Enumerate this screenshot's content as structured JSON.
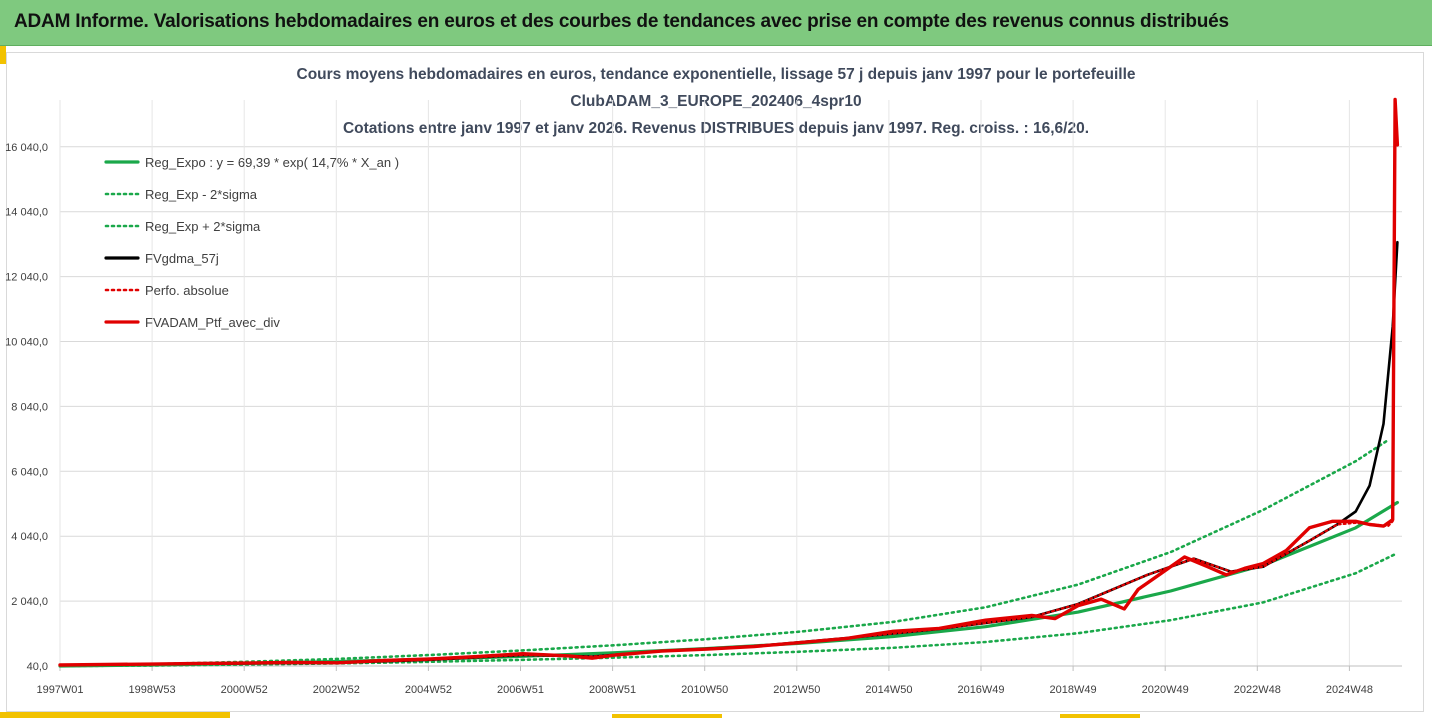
{
  "header": {
    "title": "ADAM Informe. Valorisations hebdomadaires en euros et des courbes de tendances avec prise en compte des revenus connus distribués"
  },
  "colors": {
    "header_bg": "#7fc97f",
    "accent": "#f2c200",
    "reg_green": "#1aa84a",
    "fvgdma_black": "#000000",
    "perf_red": "#e00000"
  },
  "chart_data": {
    "type": "line",
    "title_lines": [
      "Cours moyens hebdomadaires  en euros, tendance exponentielle, lissage 57 j depuis janv 1997 pour le portefeuille",
      "ClubADAM_3_EUROPE_202406_4spr10",
      "Cotations entre janv 1997 et janv 2026. Revenus DISTRIBUES depuis janv 1997. Reg. croiss. : 16,6/20."
    ],
    "x_tick_labels": [
      "1997W01",
      "1998W53",
      "2000W52",
      "2002W52",
      "2004W52",
      "2006W51",
      "2008W51",
      "2010W50",
      "2012W50",
      "2014W50",
      "2016W49",
      "2018W49",
      "2020W49",
      "2022W48",
      "2024W48"
    ],
    "x_range_years": [
      1997.0,
      2026.0
    ],
    "y_tick_labels": [
      "40,0",
      "2 040,0",
      "4 040,0",
      "6 040,0",
      "8 040,0",
      "10 040,0",
      "12 040,0",
      "14 040,0",
      "16 040,0"
    ],
    "y_ticks": [
      40,
      2040,
      4040,
      6040,
      8040,
      10040,
      12040,
      14040,
      16040
    ],
    "ylim": [
      40,
      17800
    ],
    "legend": [
      {
        "label": "Reg_Expo : y = 69,39 * exp( 14,7% *  X_an )",
        "style": "solid",
        "color": "#1aa84a"
      },
      {
        "label": "Reg_Exp - 2*sigma",
        "style": "dotted",
        "color": "#1aa84a"
      },
      {
        "label": "Reg_Exp + 2*sigma",
        "style": "dotted",
        "color": "#1aa84a"
      },
      {
        "label": "FVgdma_57j",
        "style": "solid",
        "color": "#000000"
      },
      {
        "label": "Perfo. absolue",
        "style": "dotted",
        "color": "#e00000"
      },
      {
        "label": "FVADAM_Ptf_avec_div",
        "style": "solid",
        "color": "#e00000"
      }
    ],
    "series": [
      {
        "name": "Reg_Expo",
        "x": [
          1997,
          1999,
          2001,
          2003,
          2005,
          2007,
          2009,
          2011,
          2013,
          2015,
          2017,
          2019,
          2021,
          2023,
          2025,
          2025.9
        ],
        "y": [
          40,
          70,
          120,
          180,
          250,
          340,
          450,
          580,
          740,
          950,
          1250,
          1700,
          2350,
          3150,
          4300,
          5080
        ]
      },
      {
        "name": "Reg_Exp - 2*sigma",
        "x": [
          1997,
          1999,
          2001,
          2003,
          2005,
          2007,
          2009,
          2011,
          2013,
          2015,
          2017,
          2019,
          2021,
          2023,
          2025,
          2025.9
        ],
        "y": [
          40,
          55,
          85,
          120,
          170,
          230,
          300,
          380,
          480,
          600,
          780,
          1050,
          1450,
          2000,
          2900,
          3520
        ]
      },
      {
        "name": "Reg_Exp + 2*sigma",
        "x": [
          1997,
          1999,
          2001,
          2003,
          2005,
          2007,
          2009,
          2011,
          2013,
          2015,
          2017,
          2019,
          2021,
          2023,
          2025,
          2025.7
        ],
        "y": [
          60,
          100,
          170,
          260,
          380,
          520,
          680,
          870,
          1100,
          1400,
          1850,
          2550,
          3550,
          4850,
          6350,
          7000
        ]
      },
      {
        "name": "FVgdma_57j",
        "x": [
          1997,
          2000,
          2003,
          2005,
          2007,
          2008.5,
          2010,
          2012,
          2014,
          2016,
          2018,
          2019,
          2020.5,
          2021.5,
          2022.3,
          2023,
          2024,
          2024.6,
          2025.0,
          2025.3,
          2025.6,
          2025.8,
          2025.9
        ],
        "y": [
          70,
          110,
          140,
          230,
          380,
          330,
          500,
          650,
          900,
          1180,
          1550,
          1950,
          2850,
          3350,
          2950,
          3100,
          3900,
          4400,
          4800,
          5600,
          7500,
          10500,
          13100
        ]
      },
      {
        "name": "Perfo. absolue",
        "x": [
          1997,
          2000,
          2003,
          2005,
          2007,
          2008.5,
          2010,
          2012,
          2014,
          2016,
          2018,
          2019,
          2020.5,
          2021.5,
          2022.3,
          2023,
          2024,
          2024.6,
          2025.0,
          2025.4,
          2025.7,
          2025.8,
          2025.85,
          2025.9
        ],
        "y": [
          70,
          110,
          140,
          230,
          380,
          330,
          500,
          650,
          900,
          1180,
          1550,
          1950,
          2850,
          3350,
          2950,
          3100,
          3900,
          4400,
          4450,
          4400,
          4350,
          4500,
          17500,
          16100
        ]
      },
      {
        "name": "FVADAM_Ptf_avec_div",
        "x": [
          1997,
          1998,
          1999,
          2000,
          2001,
          2002,
          2003,
          2004,
          2005,
          2006,
          2007,
          2008,
          2008.5,
          2009,
          2010,
          2011,
          2012,
          2013,
          2014,
          2015,
          2016,
          2017,
          2018,
          2018.5,
          2019,
          2019.5,
          2020,
          2020.3,
          2020.8,
          2021.3,
          2021.8,
          2022.2,
          2022.6,
          2023,
          2023.5,
          2024,
          2024.5,
          2025,
          2025.3,
          2025.6,
          2025.8,
          2025.85,
          2025.9
        ],
        "y": [
          70,
          90,
          100,
          120,
          130,
          150,
          140,
          210,
          260,
          330,
          420,
          350,
          280,
          380,
          500,
          560,
          640,
          760,
          890,
          1110,
          1200,
          1450,
          1600,
          1500,
          1900,
          2100,
          1800,
          2400,
          2900,
          3400,
          3100,
          2850,
          3050,
          3200,
          3600,
          4300,
          4500,
          4500,
          4400,
          4350,
          4550,
          17500,
          16100
        ]
      }
    ]
  }
}
